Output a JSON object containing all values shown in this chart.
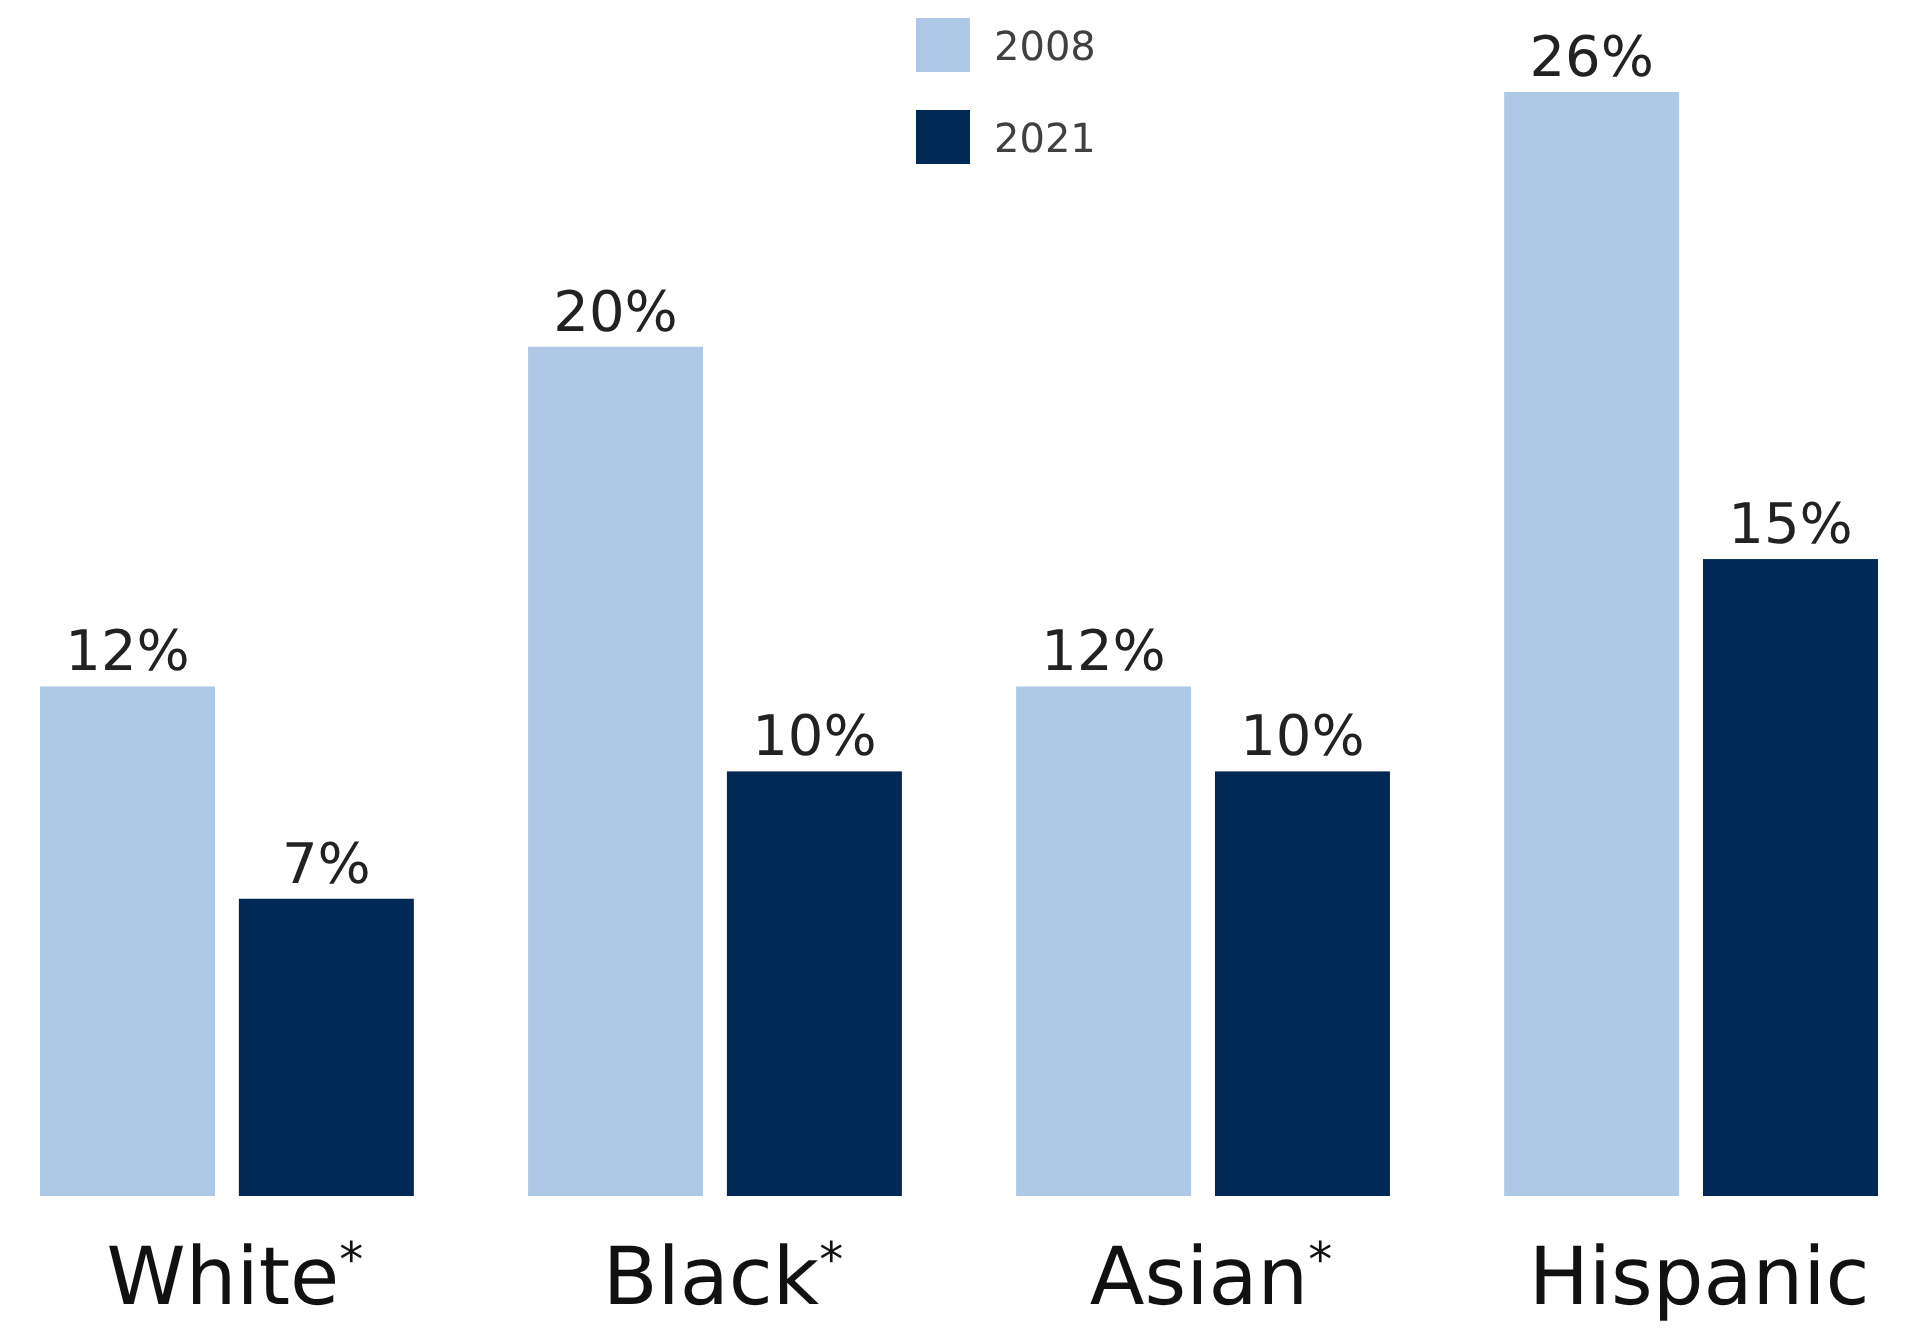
{
  "chart_data": {
    "type": "bar",
    "categories": [
      "White$^{*}$",
      "Black$^{*}$",
      "Asian$^{*}$",
      "Hispanic"
    ],
    "series": [
      {
        "name": "2008",
        "color": "#b0c8e8",
        "values": [
          12,
          20,
          12,
          26
        ],
        "value_labels": [
          "12%",
          "20%",
          "12%",
          "26%"
        ]
      },
      {
        "name": "2021",
        "color": "#002855",
        "values": [
          7,
          10,
          10,
          15
        ],
        "value_labels": [
          "7%",
          "10%",
          "10%",
          "15%"
        ]
      }
    ],
    "legend": "top"
  }
}
